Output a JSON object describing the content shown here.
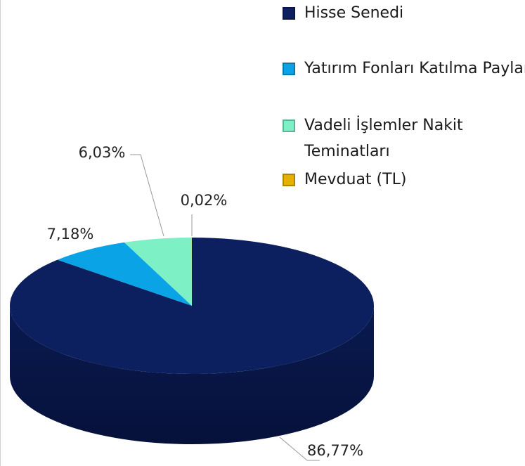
{
  "chart_data": {
    "type": "pie",
    "categories": [
      "Hisse Senedi",
      "Yatırım Fonları Katılma Payları",
      "Vadeli İşlemler Nakit Teminatları",
      "Mevduat (TL)"
    ],
    "values": [
      86.77,
      7.18,
      6.03,
      0.02
    ],
    "value_labels": [
      "86,77%",
      "7,18%",
      "6,03%",
      "0,02%"
    ],
    "colors": [
      "#0c1f5e",
      "#0aa3e6",
      "#7df0c6",
      "#e6b000"
    ],
    "legend": "top-right"
  }
}
